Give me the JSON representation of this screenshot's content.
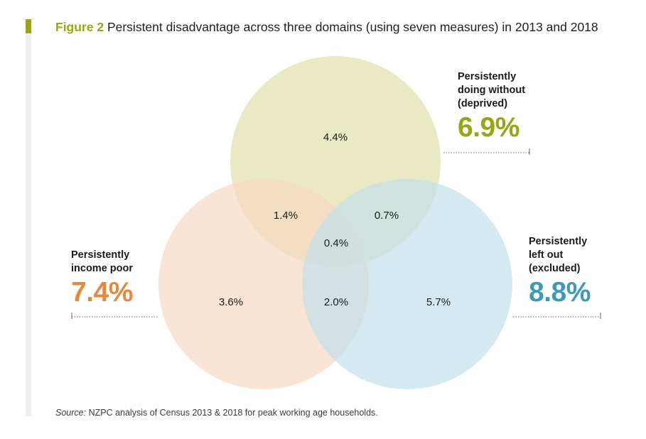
{
  "figure": {
    "label": "Figure 2",
    "title": "Persistent disadvantage across three domains (using seven measures) in 2013 and 2018"
  },
  "domains": {
    "deprived": {
      "label_lines": [
        "Persistently",
        "doing without",
        "(deprived)"
      ],
      "total": "6.9%",
      "color": "#9aa514",
      "fill": "#e3e5b4"
    },
    "income_poor": {
      "label_lines": [
        "Persistently",
        "income poor"
      ],
      "total": "7.4%",
      "color": "#e08a3e",
      "fill": "#f6d9c3"
    },
    "excluded": {
      "label_lines": [
        "Persistently",
        "left out",
        "(excluded)"
      ],
      "total": "8.8%",
      "color": "#3f9ab7",
      "fill": "#c3dfea"
    }
  },
  "regions": {
    "deprived_only": "4.4%",
    "income_only": "3.6%",
    "excluded_only": "5.7%",
    "deprived_income": "1.4%",
    "deprived_excluded": "0.7%",
    "income_excluded": "2.0%",
    "all_three": "0.4%"
  },
  "source": {
    "label": "Source:",
    "text": " NZPC analysis of Census 2013 & 2018 for peak working age households."
  }
}
